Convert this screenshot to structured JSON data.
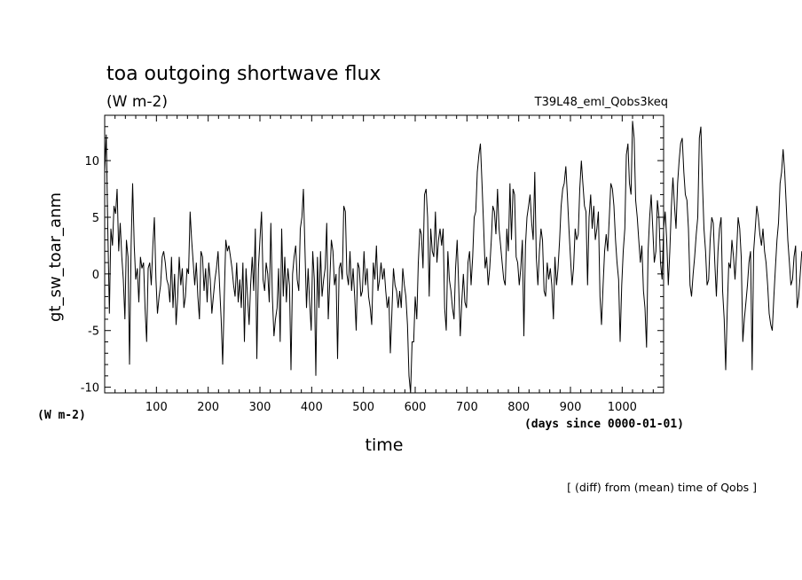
{
  "header": {
    "title": "toa outgoing shortwave flux",
    "units": "(W m-2)",
    "run_id": "T39L48_eml_Qobs3keq"
  },
  "axes": {
    "y_unit_label": "(W m-2)",
    "x_unit_label": "(days since 0000-01-01)"
  },
  "footer": {
    "note": "[ (diff) from (mean) time of Qobs ]"
  },
  "chart_data": {
    "type": "line",
    "title": "toa outgoing shortwave flux",
    "subtitle": "(W m-2)",
    "xlabel": "time",
    "ylabel": "gt_sw_toar_anm",
    "xlim": [
      0,
      1080
    ],
    "ylim": [
      -10.5,
      14
    ],
    "x_ticks": [
      100,
      200,
      300,
      400,
      500,
      600,
      700,
      800,
      900,
      1000
    ],
    "y_ticks": [
      -10,
      -5,
      0,
      5,
      10
    ],
    "grid": false,
    "x_start": 0,
    "x_step": 3,
    "y": [
      9,
      12.3,
      4,
      -3.5,
      4,
      2.5,
      6,
      5.3,
      7.5,
      2,
      4.5,
      1.5,
      -0.5,
      -4,
      3,
      1.5,
      -8,
      2.5,
      8,
      2.5,
      -0.5,
      0.5,
      -2.5,
      1.5,
      0.5,
      1,
      -3,
      -6,
      0.5,
      1,
      -1,
      2.5,
      5,
      -0.5,
      -3.5,
      -2,
      -1,
      1.5,
      2,
      1,
      -0.5,
      -1,
      -2.5,
      1.5,
      -3,
      0,
      -4.5,
      -2,
      1.5,
      -1,
      0.5,
      -3,
      -2,
      0.5,
      0,
      5.5,
      3,
      1,
      -1,
      1,
      -2,
      -4,
      2,
      1.5,
      -1.5,
      0.5,
      -2.5,
      1,
      -0.5,
      -3.5,
      -2,
      -0.5,
      0.5,
      2,
      -1,
      -4,
      -8,
      -2,
      3,
      2,
      2.5,
      1.5,
      0.5,
      -1,
      -2,
      1,
      -2.5,
      -0.5,
      -3,
      1,
      -6,
      0.5,
      -2,
      -4.5,
      -1,
      1.5,
      -1.5,
      4,
      -7.5,
      0.5,
      3,
      5.5,
      -0.5,
      -1.5,
      1,
      0,
      -2.5,
      4.5,
      -2,
      -5.5,
      -4,
      -3,
      0.5,
      -6,
      4,
      -2,
      1.5,
      -2.5,
      0.5,
      -1,
      -8.5,
      0,
      1.5,
      2.5,
      -0.5,
      -1.5,
      4,
      5,
      7.5,
      2,
      -3,
      0.5,
      -2.5,
      -5,
      2,
      -0.5,
      -9,
      1.5,
      -3,
      2,
      -2,
      -0.5,
      0.5,
      4.5,
      -4,
      -0.5,
      3,
      2,
      -1,
      0,
      -7.5,
      0.5,
      1,
      -0.5,
      6,
      5.5,
      0,
      -1,
      2,
      -1.5,
      0.5,
      -2,
      -5,
      1,
      0.5,
      -2,
      -1.5,
      2,
      -1,
      0.5,
      -2,
      -3,
      -4.5,
      1,
      -0.5,
      2.5,
      -1.5,
      -0.5,
      1,
      -0.5,
      0.5,
      -1.5,
      -3,
      -2,
      -7,
      -3.5,
      0.5,
      -1,
      -1.5,
      -3,
      -1.5,
      -3,
      0.5,
      -1,
      -2,
      -4.5,
      -9,
      -10.5,
      -6,
      -6,
      -2,
      -4,
      1,
      4,
      3.5,
      0.5,
      7,
      7.5,
      5,
      -2,
      4,
      2,
      1.5,
      5.5,
      1,
      3,
      4,
      2.5,
      4,
      -3,
      -5,
      2,
      -0.5,
      -1.5,
      -3,
      -4,
      0.5,
      3,
      -1,
      -5.5,
      -2.5,
      0,
      -2.5,
      -3,
      1,
      2,
      -1,
      1.5,
      5,
      5.5,
      9,
      10.5,
      11.5,
      8,
      4.5,
      0.5,
      1.5,
      -1,
      0.5,
      3,
      6,
      5.5,
      3.5,
      7.5,
      4,
      2.5,
      1,
      -0.5,
      -1,
      4,
      2,
      8,
      3,
      7.5,
      7,
      1.5,
      1,
      -1,
      0.5,
      3,
      -5.5,
      2.5,
      5,
      6,
      7,
      4.5,
      3,
      9,
      1.5,
      -1,
      2,
      4,
      3,
      -1.5,
      -2,
      1,
      -0.5,
      0.5,
      -1,
      -4,
      1.5,
      -1,
      0.5,
      3,
      6,
      7.5,
      8,
      9.5,
      7,
      4,
      1.5,
      -1,
      0.5,
      4,
      3,
      3.5,
      7.5,
      10,
      8,
      6,
      5.5,
      -1,
      5,
      7,
      4,
      6,
      3,
      4,
      5.5,
      -2,
      -4.5,
      -1,
      2,
      3.5,
      2,
      5,
      8,
      7.5,
      6,
      3,
      1,
      -0.5,
      -6,
      -1,
      2,
      4,
      10.5,
      11.5,
      8,
      7,
      13.5,
      12,
      6.5,
      5,
      3,
      1,
      2.5,
      -1.5,
      -3,
      -6.5,
      2,
      5,
      7,
      4,
      1,
      2,
      6.5,
      5,
      1,
      -0.5,
      4,
      5.5,
      3,
      -1,
      2,
      6,
      8.5,
      6,
      4,
      8,
      10,
      11.5,
      12,
      9,
      7,
      6.5,
      4,
      -1,
      -2,
      0,
      1.5,
      3.5,
      5,
      12,
      13,
      8,
      4,
      2,
      -1,
      -0.5,
      3,
      5,
      4.5,
      1,
      -2,
      2,
      4,
      5,
      -1.5,
      -4,
      -8.5,
      -3,
      1,
      0.5,
      3,
      1.5,
      -0.5,
      2,
      5,
      4,
      1.5,
      -6,
      -4,
      -2.5,
      -1,
      1,
      2,
      -8.5,
      2,
      4,
      6,
      5,
      3.5,
      2.5,
      4,
      2,
      1,
      -1,
      -3.5,
      -4.5,
      -5,
      -2,
      0.5,
      3,
      4.5,
      8,
      9,
      11,
      9,
      6,
      3,
      1,
      -1,
      -0.5,
      1.5,
      2.5,
      -3,
      -2,
      0,
      2,
      1.5,
      2,
      3,
      2,
      -3,
      -1,
      0.5,
      2,
      -1,
      6,
      1,
      -2
    ]
  }
}
